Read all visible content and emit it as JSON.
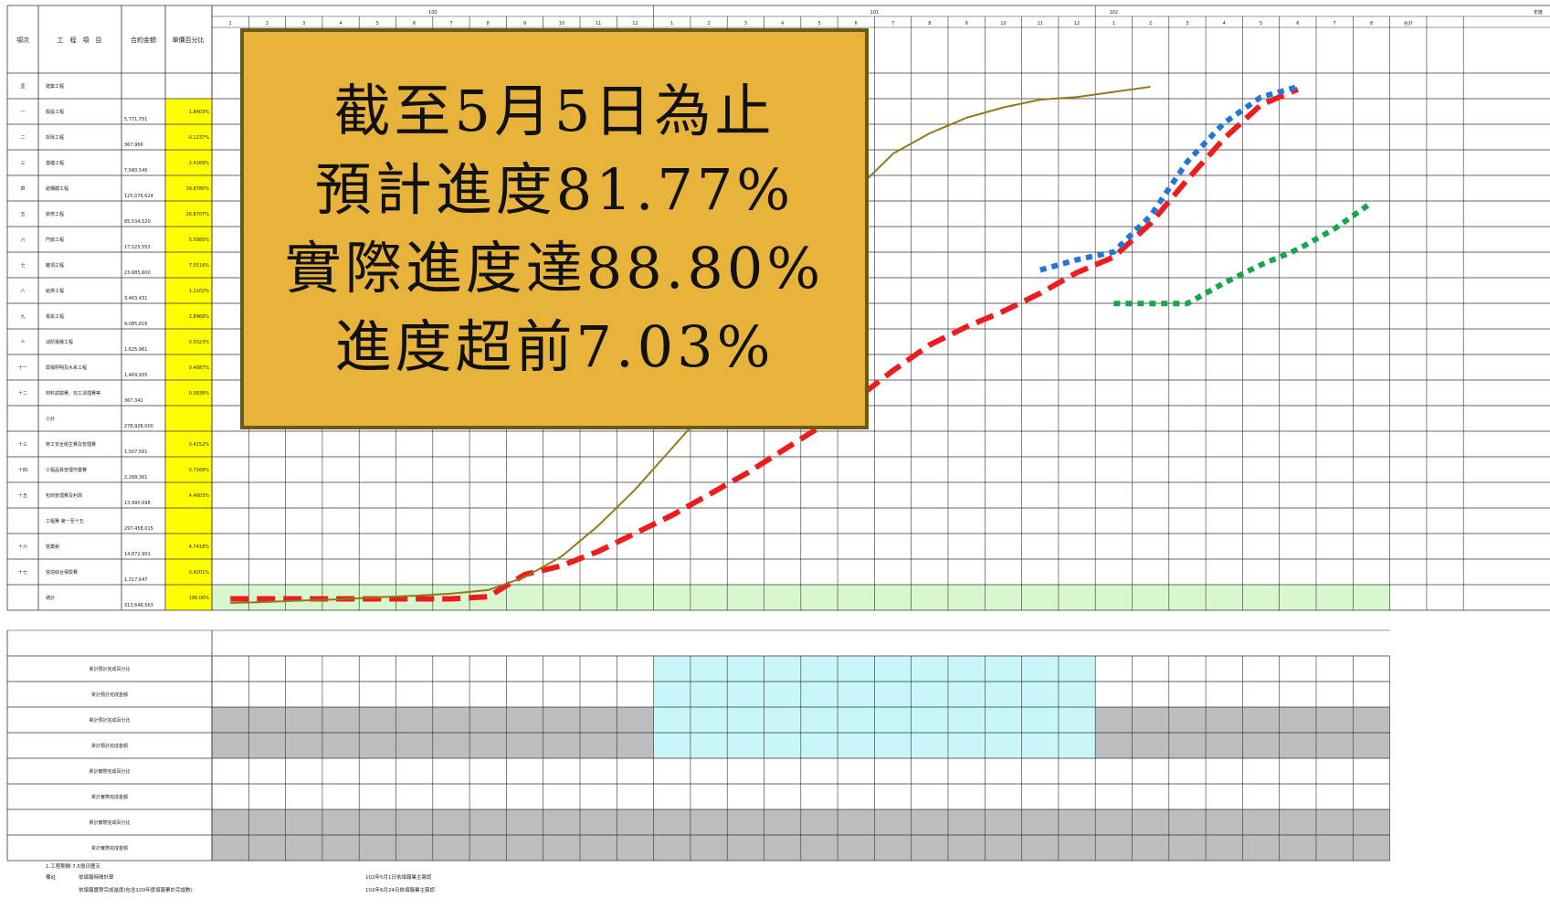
{
  "callout": {
    "line1": "截至5月5日為止",
    "line2": "預計進度81.77%",
    "line3": "實際進度達88.80%",
    "line4": "進度超前7.03%"
  },
  "table": {
    "year_labels": [
      "100",
      "101",
      "102",
      "年度"
    ],
    "header_left": [
      "項次",
      "工　程　項　目",
      "合約金額",
      "單價百分比"
    ],
    "month_numbers": [
      1,
      2,
      3,
      4,
      5,
      6,
      7,
      8,
      9,
      10,
      11,
      12,
      1,
      2,
      3,
      4,
      5,
      6,
      7,
      8,
      9,
      10,
      11,
      12,
      1,
      2,
      3,
      4,
      5,
      6,
      7,
      8
    ],
    "total_label": "合計",
    "row_labels": [
      "壹",
      "一",
      "二",
      "三",
      "四",
      "五",
      "六",
      "七",
      "八",
      "九",
      "十",
      "十一",
      "十二",
      "",
      "十三",
      "十四",
      "十五",
      "",
      "十六",
      "十七",
      ""
    ],
    "item_labels": [
      "建築工程",
      "假設工程",
      "拆除工程",
      "基礎工程",
      "結構體工程",
      "裝修工程",
      "門窗工程",
      "雜項工程",
      "給排工程",
      "電氣工程",
      "消防電機工程",
      "弱電照明及水系工程",
      "材料試驗費、完工清理費等",
      "小計",
      "勞工安全衛生費及管理費",
      "工程品質管理作業費",
      "包商管理費及利潤",
      "工程費 第一至十五",
      "營業稅",
      "營造綜合保險費",
      "總計"
    ],
    "contract_amounts": [
      "",
      "5,771,751",
      "367,966",
      "7,580,540",
      "125,076,624",
      "85,534,520",
      "17,525,553",
      "23,685,600",
      "3,463,431",
      "9,085,816",
      "1,625,961",
      "1,469,935",
      "367,341",
      "278,928,000",
      "1,507,561",
      "2,268,361",
      "13,990,098",
      "297,458,015",
      "14,872,901",
      "1,317,647",
      "313,648,563"
    ],
    "percentages": [
      "",
      "1.8403%",
      "-0.1237%",
      "2.4169%",
      "39.8780%",
      "26.8707%",
      "5.5880%",
      "7.5516%",
      "1.1102%",
      "2.8968%",
      "0.5023%",
      "0.4687%",
      "0.0838%",
      "",
      "0.4152%",
      "0.7168%",
      "4.4603%",
      "",
      "4.7418%",
      "0.4201%",
      "100.00%"
    ],
    "bottom_labels": [
      "累計預計完成百分比",
      "累計預計完成金額",
      "累計預計完成百分比",
      "累計預計完成金額",
      "累計實際完成百分比",
      "累計實際完成金額",
      "累計實際完成百分比",
      "累計實際完成金額"
    ],
    "notes": [
      "1.工程期間:7.5億日曆天",
      "備註",
      "依填報時間計算",
      "依填報實際完成進度(包含100年度填報累計完成數)",
      "102年5月1日依填報業主簽認",
      "102年6月24日依填報業主簽認"
    ]
  },
  "chart_data": {
    "type": "line",
    "title": "",
    "xlabel": "",
    "ylabel": "",
    "x": [
      "100/1",
      "100/2",
      "100/3",
      "100/4",
      "100/5",
      "100/6",
      "100/7",
      "100/8",
      "100/9",
      "100/10",
      "100/11",
      "100/12",
      "101/1",
      "101/2",
      "101/3",
      "101/4",
      "101/5",
      "101/6",
      "101/7",
      "101/8",
      "101/9",
      "101/10",
      "101/11",
      "101/12",
      "102/1",
      "102/2",
      "102/3",
      "102/4",
      "102/5",
      "102/6",
      "102/7",
      "102/8"
    ],
    "ylim": [
      0,
      100
    ],
    "series": [
      {
        "name": "",
        "color": "#ee1c1c",
        "style": "dashed",
        "values": [
          0.8,
          0.8,
          0.8,
          0.8,
          0.8,
          0.8,
          0.8,
          1.2,
          5.5,
          7.2,
          10.0,
          13.5,
          17.0,
          21.0,
          25.0,
          29.5,
          34.0,
          39.5,
          45.0,
          50.0,
          53.5,
          56.5,
          60.0,
          64.0,
          67.0,
          73.5,
          82.0,
          90.0,
          96.5,
          99.5,
          null,
          null
        ]
      },
      {
        "name": "",
        "color": "#2377d4",
        "style": "dotted",
        "values": [
          null,
          null,
          null,
          null,
          null,
          null,
          null,
          null,
          null,
          null,
          null,
          null,
          null,
          null,
          null,
          null,
          null,
          null,
          null,
          null,
          null,
          null,
          64.5,
          66.5,
          68.0,
          75.0,
          85.5,
          93.0,
          98.0,
          100.0,
          null,
          null
        ]
      },
      {
        "name": "",
        "color": "#17a64a",
        "style": "dotted",
        "values": [
          null,
          null,
          null,
          null,
          null,
          null,
          null,
          null,
          null,
          null,
          null,
          null,
          null,
          null,
          null,
          null,
          null,
          null,
          null,
          null,
          null,
          null,
          null,
          null,
          58.0,
          58.0,
          58.0,
          62.0,
          65.5,
          68.5,
          72.5,
          77.5
        ]
      },
      {
        "name": "",
        "color": "#8f7a1e",
        "style": "solid",
        "values": [
          0.0,
          0.2,
          0.5,
          0.7,
          1.1,
          1.4,
          1.8,
          2.5,
          5.0,
          9.0,
          15.0,
          22.0,
          30.0,
          38.0,
          47.0,
          58.0,
          71.0,
          80.0,
          87.0,
          91.0,
          94.0,
          96.0,
          97.5,
          98.0,
          99.0,
          100.0,
          null,
          null,
          null,
          null,
          null,
          null
        ]
      },
      {
        "name": "",
        "color": "#6a5a18",
        "style": "solid",
        "values": [
          null,
          null,
          null,
          null,
          null,
          null,
          null,
          null,
          null,
          null,
          null,
          null,
          null,
          null,
          null,
          null,
          null,
          null,
          null,
          null,
          null,
          null,
          null,
          null,
          null,
          null,
          null,
          null,
          null,
          null,
          null,
          null
        ]
      }
    ]
  }
}
